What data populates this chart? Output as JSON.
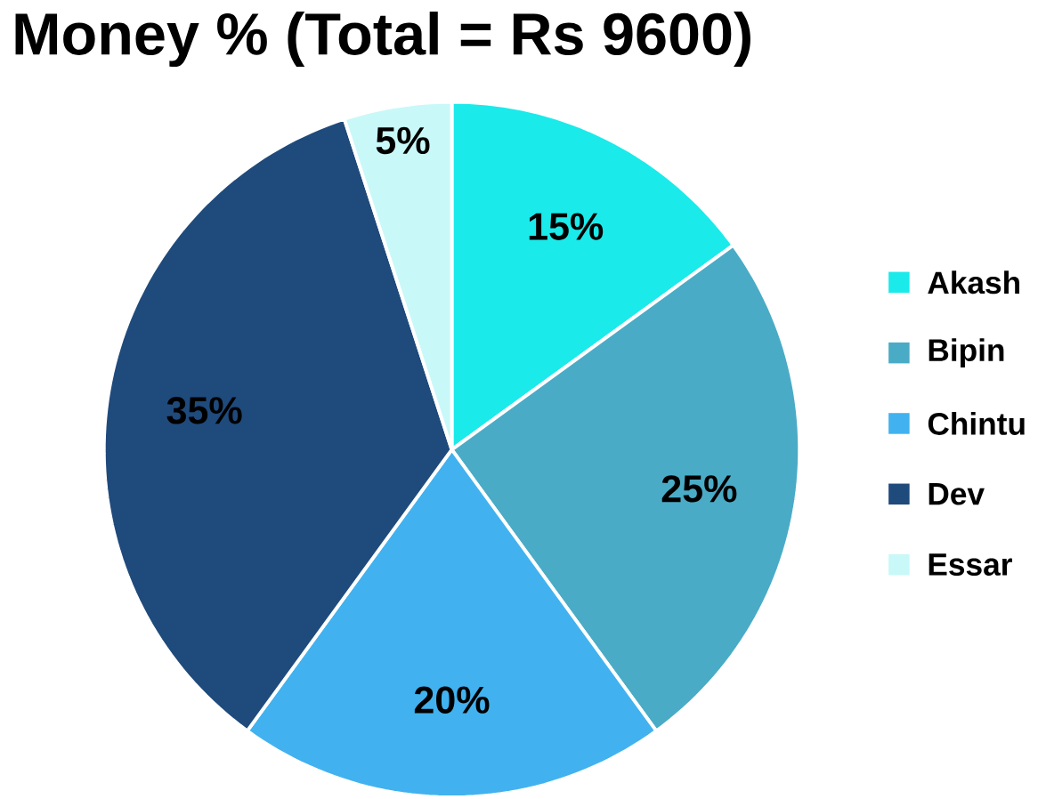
{
  "chart_data": {
    "type": "pie",
    "title": "Money % (Total = Rs 9600)",
    "categories": [
      "Akash",
      "Bipin",
      "Chintu",
      "Dev",
      "Essar"
    ],
    "values": [
      15,
      25,
      20,
      35,
      5
    ],
    "colors": [
      "#1aeaea",
      "#4aabc6",
      "#41b2ef",
      "#1f4a7c",
      "#c9f8f8"
    ],
    "value_labels": [
      "15%",
      "25%",
      "20%",
      "35%",
      "5%"
    ],
    "legend": "right"
  }
}
